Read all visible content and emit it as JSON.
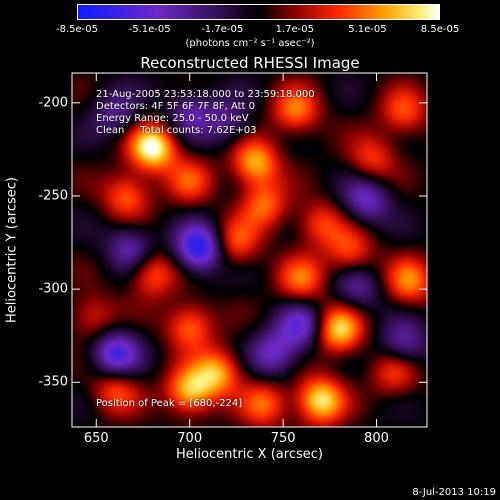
{
  "chart_data": {
    "type": "heatmap",
    "title": "Reconstructed RHESSI Image",
    "xlabel": "Heliocentric X (arcsec)",
    "ylabel": "Heliocentric Y (arcsec)",
    "xlim": [
      637,
      827
    ],
    "ylim": [
      -374,
      -184
    ],
    "x_ticks": [
      "650",
      "700",
      "750",
      "800"
    ],
    "x_tick_values": [
      650,
      700,
      750,
      800
    ],
    "y_ticks": [
      "-200",
      "-250",
      "-300",
      "-350"
    ],
    "y_tick_values": [
      -200,
      -250,
      -300,
      -350
    ],
    "colorbar": {
      "ticks": [
        "-8.5e-05",
        "-5.1e-05",
        "-1.7e-05",
        "1.7e-05",
        "5.1e-05",
        "8.5e-05"
      ],
      "tick_values": [
        -8.5e-05,
        -5.1e-05,
        -1.7e-05,
        1.7e-05,
        5.1e-05,
        8.5e-05
      ],
      "unit_label": "(photons cm⁻² s⁻¹ asec⁻²)"
    },
    "annotations": [
      "21-Aug-2005 23:53:18.000 to 23:59:18.000",
      "Detectors: 4F 5F 6F 7F 8F, Att 0",
      "Energy Range: 25.0 - 50.0 keV",
      "Clean     Total counts: 7.62E+03"
    ],
    "peak_label": "Position of Peak = [680,-224]",
    "peak": {
      "x": 680,
      "y": -224
    },
    "sources": [
      {
        "x": 680,
        "y": -224,
        "v": 1.0
      },
      {
        "x": 666,
        "y": -250,
        "v": 0.55
      },
      {
        "x": 700,
        "y": -242,
        "v": 0.45
      },
      {
        "x": 735,
        "y": -232,
        "v": 0.75
      },
      {
        "x": 757,
        "y": -204,
        "v": 0.6
      },
      {
        "x": 740,
        "y": -255,
        "v": 0.55
      },
      {
        "x": 725,
        "y": -275,
        "v": 0.5
      },
      {
        "x": 760,
        "y": -295,
        "v": 0.55
      },
      {
        "x": 786,
        "y": -280,
        "v": 0.5
      },
      {
        "x": 818,
        "y": -296,
        "v": 0.6
      },
      {
        "x": 798,
        "y": -230,
        "v": 0.45
      },
      {
        "x": 815,
        "y": -205,
        "v": 0.5
      },
      {
        "x": 680,
        "y": -292,
        "v": 0.55
      },
      {
        "x": 700,
        "y": -320,
        "v": 0.6
      },
      {
        "x": 715,
        "y": -345,
        "v": 0.7
      },
      {
        "x": 740,
        "y": -362,
        "v": 0.55
      },
      {
        "x": 770,
        "y": -360,
        "v": 0.9
      },
      {
        "x": 780,
        "y": -322,
        "v": 0.85
      },
      {
        "x": 810,
        "y": -345,
        "v": 0.45
      },
      {
        "x": 648,
        "y": -315,
        "v": 0.4
      },
      {
        "x": 660,
        "y": -355,
        "v": 0.5
      },
      {
        "x": 770,
        "y": -265,
        "v": 0.45
      },
      {
        "x": 700,
        "y": -355,
        "v": 0.8
      },
      {
        "x": 660,
        "y": -205,
        "v": -0.4
      },
      {
        "x": 700,
        "y": -205,
        "v": -0.45
      },
      {
        "x": 660,
        "y": -335,
        "v": -0.75
      },
      {
        "x": 705,
        "y": -278,
        "v": -0.9
      },
      {
        "x": 668,
        "y": -278,
        "v": -0.5
      },
      {
        "x": 760,
        "y": -320,
        "v": -0.6
      },
      {
        "x": 795,
        "y": -252,
        "v": -0.55
      },
      {
        "x": 745,
        "y": -335,
        "v": -0.55
      },
      {
        "x": 790,
        "y": -300,
        "v": -0.4
      },
      {
        "x": 815,
        "y": -330,
        "v": -0.5
      },
      {
        "x": 720,
        "y": -210,
        "v": -0.4
      }
    ],
    "grid": false
  },
  "footer": {
    "date": "8-Jul-2013 10:19"
  },
  "colors": {
    "background": "#000000",
    "text": "#ffffff"
  }
}
